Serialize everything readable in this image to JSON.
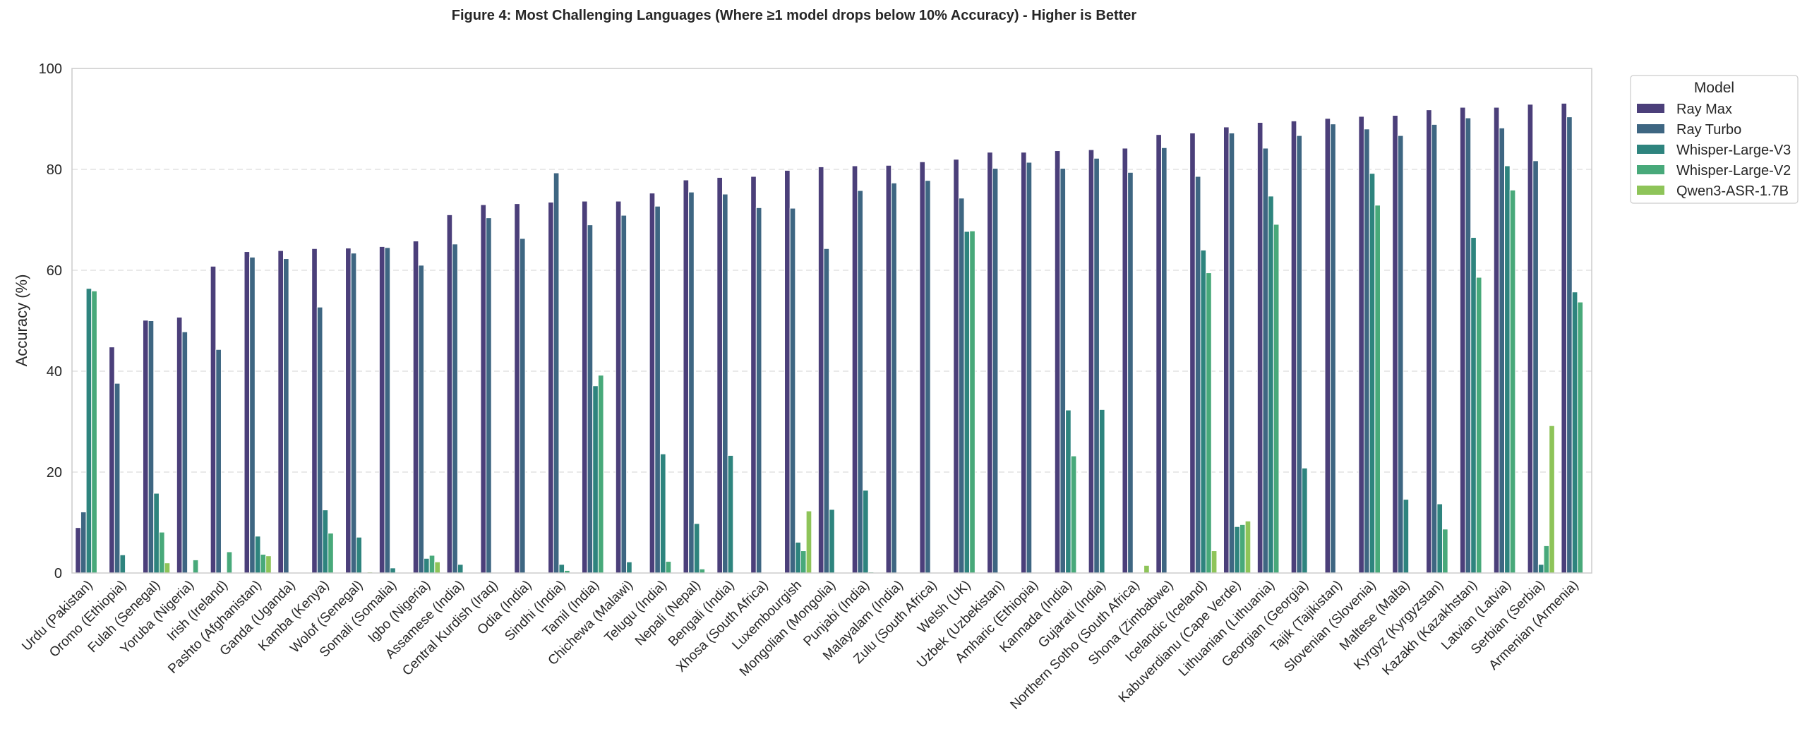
{
  "chart_data": {
    "type": "bar",
    "title": "Figure 4: Most Challenging Languages (Where ≥1 model drops below 10% Accuracy) - Higher is Better",
    "xlabel": "",
    "ylabel": "Accuracy (%)",
    "ylim": [
      0,
      100
    ],
    "yticks": [
      0,
      20,
      40,
      60,
      80,
      100
    ],
    "grid": "y-dashed",
    "legend": {
      "title": "Model",
      "placement": "outside-top-right"
    },
    "categories": [
      "Urdu (Pakistan)",
      "Oromo (Ethiopia)",
      "Fulah (Senegal)",
      "Yoruba (Nigeria)",
      "Irish (Ireland)",
      "Pashto (Afghanistan)",
      "Ganda (Uganda)",
      "Kamba (Kenya)",
      "Wolof (Senegal)",
      "Somali (Somalia)",
      "Igbo (Nigeria)",
      "Assamese (India)",
      "Central Kurdish (Iraq)",
      "Odia (India)",
      "Sindhi (India)",
      "Tamil (India)",
      "Chichewa (Malawi)",
      "Telugu (India)",
      "Nepali (Nepal)",
      "Bengali (India)",
      "Xhosa (South Africa)",
      "Luxembourgish",
      "Mongolian (Mongolia)",
      "Punjabi (India)",
      "Malayalam (India)",
      "Zulu (South Africa)",
      "Welsh (UK)",
      "Uzbek (Uzbekistan)",
      "Amharic (Ethiopia)",
      "Kannada (India)",
      "Gujarati (India)",
      "Northern Sotho (South Africa)",
      "Shona (Zimbabwe)",
      "Icelandic (Iceland)",
      "Kabuverdianu (Cape Verde)",
      "Lithuanian (Lithuania)",
      "Georgian (Georgia)",
      "Tajik (Tajikistan)",
      "Slovenian (Slovenia)",
      "Maltese (Malta)",
      "Kyrgyz (Kyrgyzstan)",
      "Kazakh (Kazakhstan)",
      "Latvian (Latvia)",
      "Serbian (Serbia)",
      "Armenian (Armenia)"
    ],
    "series": [
      {
        "name": "Ray Max",
        "color": "#4b3f7a",
        "values": [
          9.0,
          44.8,
          50.1,
          50.7,
          60.8,
          63.7,
          63.9,
          64.3,
          64.4,
          64.7,
          65.8,
          71.0,
          73.0,
          73.2,
          73.5,
          73.7,
          73.7,
          75.3,
          77.9,
          78.4,
          78.6,
          79.8,
          80.5,
          80.7,
          80.8,
          81.5,
          82.0,
          83.4,
          83.4,
          83.7,
          83.9,
          84.2,
          86.9,
          87.2,
          88.4,
          89.3,
          89.6,
          90.1,
          90.5,
          90.7,
          91.8,
          92.3,
          92.3,
          92.9,
          93.1
        ]
      },
      {
        "name": "Ray Turbo",
        "color": "#3e6682",
        "values": [
          12.1,
          37.6,
          50.0,
          47.8,
          44.3,
          62.6,
          62.3,
          52.7,
          63.4,
          64.5,
          61.0,
          65.2,
          70.4,
          66.3,
          79.3,
          69.0,
          70.9,
          72.7,
          75.5,
          75.1,
          72.4,
          72.3,
          64.3,
          75.8,
          77.3,
          77.8,
          74.3,
          80.2,
          81.4,
          80.2,
          82.2,
          79.4,
          84.3,
          78.6,
          87.2,
          84.2,
          86.7,
          89.0,
          88.0,
          86.7,
          88.9,
          90.2,
          88.2,
          81.7,
          90.4
        ]
      },
      {
        "name": "Whisper-Large-V3",
        "color": "#2e847e",
        "values": [
          56.4,
          3.6,
          15.8,
          0,
          0,
          7.3,
          0,
          12.5,
          7.1,
          1.0,
          2.9,
          1.7,
          0,
          0,
          1.7,
          37.1,
          2.2,
          23.6,
          9.8,
          23.3,
          0,
          6.1,
          12.6,
          16.4,
          0,
          0,
          67.7,
          0,
          0,
          32.3,
          32.4,
          0,
          0,
          64.0,
          9.2,
          74.7,
          20.8,
          0,
          79.2,
          14.6,
          13.7,
          66.5,
          80.7,
          1.7,
          55.7
        ]
      },
      {
        "name": "Whisper-Large-V2",
        "color": "#48a97a",
        "values": [
          55.9,
          0,
          8.1,
          2.6,
          4.2,
          3.7,
          0,
          7.9,
          0,
          0,
          3.5,
          0,
          0,
          0,
          0.5,
          39.2,
          0,
          2.3,
          0.8,
          0,
          0,
          4.4,
          0,
          0.2,
          0,
          0,
          67.8,
          0,
          0,
          23.2,
          0,
          0,
          0,
          59.5,
          9.6,
          69.1,
          0,
          0,
          72.9,
          0,
          8.7,
          58.6,
          75.9,
          5.4,
          53.7
        ]
      },
      {
        "name": "Qwen3-ASR-1.7B",
        "color": "#8ec459",
        "values": [
          0,
          0,
          2.0,
          0,
          0,
          3.4,
          0,
          0,
          0.2,
          0,
          2.2,
          0,
          0,
          0,
          0,
          0,
          0,
          0,
          0,
          0,
          0,
          12.3,
          0,
          0,
          0,
          0,
          0,
          0,
          0,
          0,
          0,
          1.5,
          0,
          4.4,
          10.3,
          0,
          0,
          0,
          0,
          0,
          0,
          0,
          0,
          29.2,
          0
        ]
      }
    ]
  }
}
